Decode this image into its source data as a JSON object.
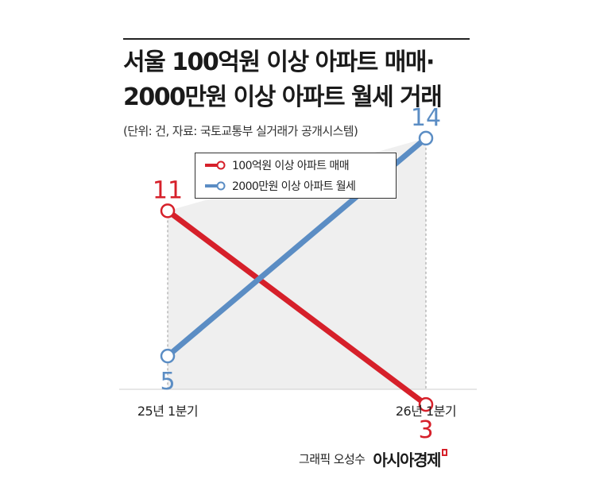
{
  "header": {
    "title_line1": "서울 100억원 이상 아파트 매매·",
    "title_line2": "2000만원 이상 아파트 월세 거래",
    "subtitle": "(단위: 건, 자료: 국토교통부 실거래가 공개시스템)"
  },
  "credit": {
    "text": "그래픽 오성수",
    "logo_text": "아시아경제"
  },
  "chart_data": {
    "type": "line",
    "categories": [
      "25년 1분기",
      "26년 1분기"
    ],
    "series": [
      {
        "name": "100억원 이상 아파트 매매",
        "values": [
          11,
          3
        ],
        "color": "#d6202a"
      },
      {
        "name": "2000만원 이상 아파트 월세",
        "values": [
          5,
          14
        ],
        "color": "#5b8dc4"
      }
    ],
    "ylim": [
      1,
      16
    ],
    "grid": false,
    "legend_position": "top-center",
    "shaded_region": true
  }
}
